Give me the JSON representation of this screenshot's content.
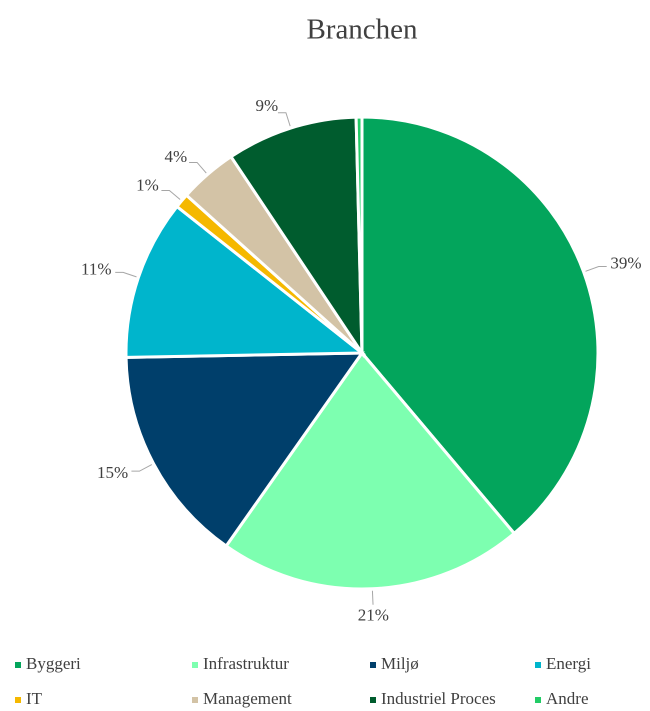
{
  "chart_data": {
    "type": "pie",
    "title": "Branchen",
    "categories": [
      "Byggeri",
      "Infrastruktur",
      "Miljø",
      "Energi",
      "IT",
      "Management",
      "Industriel Proces",
      "Andre"
    ],
    "values": [
      39,
      21,
      15,
      11,
      1,
      4,
      9,
      0.4
    ],
    "value_labels": [
      "39%",
      "21%",
      "15%",
      "11%",
      "1%",
      "4%",
      "9%",
      null
    ],
    "colors": [
      "#03a55c",
      "#7dffb0",
      "#003f6b",
      "#00b5cc",
      "#f5b800",
      "#d3c3a6",
      "#005c2e",
      "#22cc66"
    ],
    "legend": "bottom"
  }
}
